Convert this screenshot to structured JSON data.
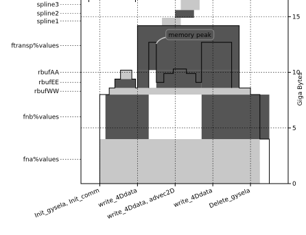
{
  "chart_data": {
    "type": "area",
    "title": "",
    "xlabel": "",
    "ylabel": "Giga Bytes",
    "ylim": [
      0,
      16.5
    ],
    "yticks": [
      "0",
      "5",
      "10",
      "15"
    ],
    "grid": true,
    "x_categories": [
      "Init_gysela, Init_comm",
      "write_4Ddata",
      "write_4Ddata, advec2D",
      "write_4Ddata",
      "Delete_gysela"
    ],
    "x_category_positions": [
      1,
      2,
      3,
      4,
      5
    ],
    "xlim": [
      0.5,
      6.0
    ],
    "layers": [
      {
        "name": "fna%values",
        "color": "#c8c8c8"
      },
      {
        "name": "fnb%values",
        "color": "#555555"
      },
      {
        "name": "rbufWW",
        "color": "#c8c8c8"
      },
      {
        "name": "rbufEE",
        "color": "#555555"
      },
      {
        "name": "rbufAA",
        "color": "#c8c8c8"
      },
      {
        "name": "ftransp%values",
        "color": "#555555"
      },
      {
        "name": "spline1",
        "color": "#c8c8c8"
      },
      {
        "name": "spline2",
        "color": "#555555"
      },
      {
        "name": "spline3",
        "color": "#c8c8c8"
      }
    ],
    "rects": [
      {
        "layer": "fna%values",
        "x0": 1.0,
        "x1": 5.5,
        "y0": 0,
        "y1": 2.0,
        "fill": "#c8c8c8"
      },
      {
        "layer": "fna%values",
        "x0": 1.0,
        "x1": 5.25,
        "y0": 2.0,
        "y1": 4.0,
        "fill": "#c8c8c8"
      },
      {
        "layer": "fnb%values",
        "x0": 1.15,
        "x1": 2.3,
        "y0": 4.0,
        "y1": 8.0,
        "fill": "#555555"
      },
      {
        "layer": "fnb%values",
        "x0": 3.7,
        "x1": 5.25,
        "y0": 4.0,
        "y1": 8.0,
        "fill": "#555555"
      },
      {
        "layer": "fnb%values",
        "x0": 5.25,
        "x1": 5.5,
        "y0": 4.0,
        "y1": 8.0,
        "fill": "#555555"
      },
      {
        "layer": "rbufWW",
        "x0": 1.25,
        "x1": 5.0,
        "y0": 8.0,
        "y1": 8.6,
        "fill": "#c8c8c8"
      },
      {
        "layer": "rbufEE",
        "x0": 1.4,
        "x1": 1.95,
        "y0": 8.6,
        "y1": 9.4,
        "fill": "#555555"
      },
      {
        "layer": "rbufAA",
        "x0": 1.55,
        "x1": 1.85,
        "y0": 9.4,
        "y1": 10.2,
        "fill": "#c8c8c8"
      },
      {
        "layer": "ftransp%values",
        "x0": 2.0,
        "x1": 4.7,
        "y0": 10.2,
        "y1": 14.2,
        "fill": "#555555"
      },
      {
        "layer": "ftransp%values",
        "x0": 2.0,
        "x1": 2.3,
        "y0": 8.6,
        "y1": 10.2,
        "fill": "#555555"
      },
      {
        "layer": "ftransp%values",
        "x0": 3.7,
        "x1": 4.7,
        "y0": 8.6,
        "y1": 10.2,
        "fill": "#555555"
      },
      {
        "layer": "ftransp%values",
        "x0": 2.3,
        "x1": 3.7,
        "y0": 8.6,
        "y1": 10.2,
        "fill": "#555555"
      },
      {
        "layer": "spline1",
        "x0": 2.65,
        "x1": 3.15,
        "y0": 14.2,
        "y1": 14.9,
        "fill": "#c8c8c8"
      },
      {
        "layer": "spline2",
        "x0": 3.0,
        "x1": 3.5,
        "y0": 14.9,
        "y1": 15.6,
        "fill": "#555555"
      },
      {
        "layer": "spline3",
        "x0": 3.15,
        "x1": 3.65,
        "y0": 15.6,
        "y1": 16.5,
        "fill": "#c8c8c8"
      }
    ],
    "white_rects": [
      {
        "x0": 2.3,
        "x1": 3.7,
        "y0": 4.0,
        "y1": 8.0
      },
      {
        "x0": 5.25,
        "x1": 5.5,
        "y0": 0,
        "y1": 4.0
      },
      {
        "x0": 2.3,
        "x1": 2.5,
        "y0": 8.6,
        "y1": 10.2
      }
    ],
    "envelope": [
      [
        1.0,
        0
      ],
      [
        1.0,
        8.0
      ],
      [
        1.25,
        8.0
      ],
      [
        1.25,
        8.6
      ],
      [
        1.4,
        8.6
      ],
      [
        1.4,
        9.4
      ],
      [
        1.55,
        9.4
      ],
      [
        1.55,
        10.2
      ],
      [
        1.85,
        10.2
      ],
      [
        1.85,
        9.4
      ],
      [
        1.95,
        9.4
      ],
      [
        1.95,
        8.6
      ],
      [
        2.0,
        8.6
      ],
      [
        2.0,
        14.2
      ],
      [
        4.7,
        14.2
      ],
      [
        4.7,
        8.6
      ],
      [
        5.0,
        8.6
      ],
      [
        5.0,
        8.0
      ],
      [
        5.25,
        8.0
      ],
      [
        5.25,
        4.0
      ],
      [
        5.5,
        4.0
      ],
      [
        5.5,
        0
      ]
    ],
    "inner_outline": [
      [
        2.3,
        8.6
      ],
      [
        2.3,
        12.7
      ],
      [
        2.5,
        12.7
      ],
      [
        2.5,
        9.1
      ],
      [
        2.7,
        9.1
      ],
      [
        2.7,
        9.9
      ],
      [
        2.95,
        9.9
      ],
      [
        2.95,
        10.3
      ],
      [
        3.3,
        10.3
      ],
      [
        3.3,
        9.9
      ],
      [
        3.55,
        9.9
      ],
      [
        3.55,
        9.1
      ],
      [
        3.7,
        9.1
      ],
      [
        3.7,
        12.7
      ],
      [
        4.5,
        12.7
      ],
      [
        4.5,
        8.6
      ]
    ],
    "annotations": [
      {
        "text": "memory peak",
        "x": 3.3,
        "y": 13.3
      }
    ]
  }
}
